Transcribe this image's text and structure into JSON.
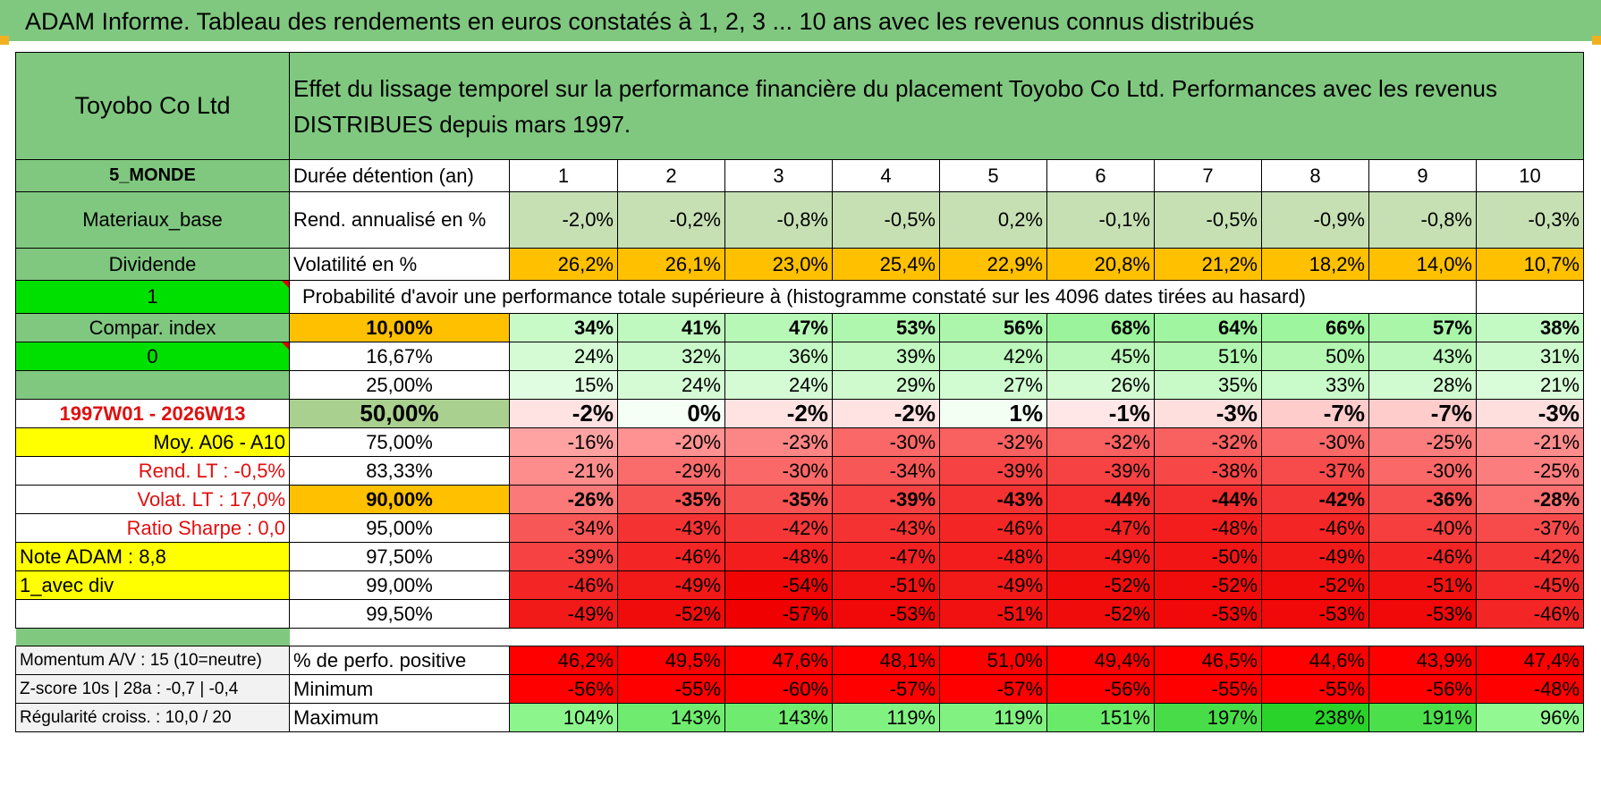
{
  "title": "ADAM Informe. Tableau des rendements en euros constatés à 1, 2, 3 ... 10 ans avec les revenus connus distribués",
  "company": "Toyobo Co Ltd",
  "description": "Effet du lissage temporel sur la performance financière du placement Toyobo Co Ltd. Performances avec les revenus DISTRIBUES depuis mars 1997.",
  "side": {
    "region": "5_MONDE",
    "sector": "Materiaux_base",
    "dividend": "Dividende",
    "flag1": "1",
    "compar_index": "Compar. index",
    "flag0": "0",
    "period": "1997W01 - 2026W13",
    "moy": "Moy. A06 - A10",
    "rend_lt": "Rend. LT :   -0,5%",
    "volat_lt": "Volat. LT :   17,0%",
    "sharpe": "Ratio Sharpe :    0,0",
    "note": "Note ADAM : 8,8",
    "avec_div": "1_avec div",
    "momentum": "Momentum A/V : 15 (10=neutre)",
    "zscore": "Z-score 10s | 28a : -0,7 | -0,4",
    "regularite": "Régularité croiss. : 10,0 / 20"
  },
  "labels": {
    "duree": "Durée détention (an)",
    "rend": "Rend. annualisé en %",
    "vol": "Volatilité en %",
    "prob": "Probabilité d'avoir une performance totale supérieure à (histogramme constaté sur les 4096 dates tirées au hasard)",
    "pos": "% de perfo. positive",
    "min": "Minimum",
    "max": "Maximum"
  },
  "years": [
    "1",
    "2",
    "3",
    "4",
    "5",
    "6",
    "7",
    "8",
    "9",
    "10"
  ],
  "rend": [
    "-2,0%",
    "-0,2%",
    "-0,8%",
    "-0,5%",
    "0,2%",
    "-0,1%",
    "-0,5%",
    "-0,9%",
    "-0,8%",
    "-0,3%"
  ],
  "vol": [
    "26,2%",
    "26,1%",
    "23,0%",
    "25,4%",
    "22,9%",
    "20,8%",
    "21,2%",
    "18,2%",
    "14,0%",
    "10,7%"
  ],
  "prob_rows": [
    {
      "p": "10,00%",
      "v": [
        "34%",
        "41%",
        "47%",
        "53%",
        "56%",
        "68%",
        "64%",
        "66%",
        "57%",
        "38%"
      ]
    },
    {
      "p": "16,67%",
      "v": [
        "24%",
        "32%",
        "36%",
        "39%",
        "42%",
        "45%",
        "51%",
        "50%",
        "43%",
        "31%"
      ]
    },
    {
      "p": "25,00%",
      "v": [
        "15%",
        "24%",
        "24%",
        "29%",
        "27%",
        "26%",
        "35%",
        "33%",
        "28%",
        "21%"
      ]
    },
    {
      "p": "50,00%",
      "v": [
        "-2%",
        "0%",
        "-2%",
        "-2%",
        "1%",
        "-1%",
        "-3%",
        "-7%",
        "-7%",
        "-3%"
      ]
    },
    {
      "p": "75,00%",
      "v": [
        "-16%",
        "-20%",
        "-23%",
        "-30%",
        "-32%",
        "-32%",
        "-32%",
        "-30%",
        "-25%",
        "-21%"
      ]
    },
    {
      "p": "83,33%",
      "v": [
        "-21%",
        "-29%",
        "-30%",
        "-34%",
        "-39%",
        "-39%",
        "-38%",
        "-37%",
        "-30%",
        "-25%"
      ]
    },
    {
      "p": "90,00%",
      "v": [
        "-26%",
        "-35%",
        "-35%",
        "-39%",
        "-43%",
        "-44%",
        "-44%",
        "-42%",
        "-36%",
        "-28%"
      ]
    },
    {
      "p": "95,00%",
      "v": [
        "-34%",
        "-43%",
        "-42%",
        "-43%",
        "-46%",
        "-47%",
        "-48%",
        "-46%",
        "-40%",
        "-37%"
      ]
    },
    {
      "p": "97,50%",
      "v": [
        "-39%",
        "-46%",
        "-48%",
        "-47%",
        "-48%",
        "-49%",
        "-50%",
        "-49%",
        "-46%",
        "-42%"
      ]
    },
    {
      "p": "99,00%",
      "v": [
        "-46%",
        "-49%",
        "-54%",
        "-51%",
        "-49%",
        "-52%",
        "-52%",
        "-52%",
        "-51%",
        "-45%"
      ]
    },
    {
      "p": "99,50%",
      "v": [
        "-49%",
        "-52%",
        "-57%",
        "-53%",
        "-51%",
        "-52%",
        "-53%",
        "-53%",
        "-53%",
        "-46%"
      ]
    }
  ],
  "pos": [
    "46,2%",
    "49,5%",
    "47,6%",
    "48,1%",
    "51,0%",
    "49,4%",
    "46,5%",
    "44,6%",
    "43,9%",
    "47,4%"
  ],
  "min": [
    "-56%",
    "-55%",
    "-60%",
    "-57%",
    "-57%",
    "-56%",
    "-55%",
    "-55%",
    "-56%",
    "-48%"
  ],
  "max": [
    "104%",
    "143%",
    "143%",
    "119%",
    "119%",
    "151%",
    "197%",
    "238%",
    "191%",
    "96%"
  ]
}
